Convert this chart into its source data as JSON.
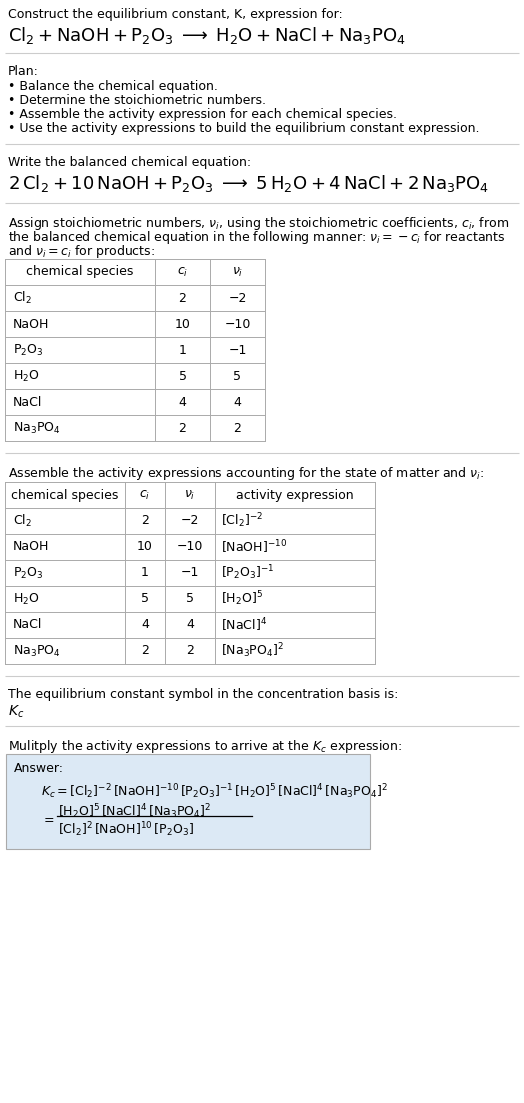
{
  "bg_color": "#ffffff",
  "text_color": "#000000",
  "table_border_color": "#aaaaaa",
  "answer_box_color": "#dce9f5",
  "separator_color": "#cccccc",
  "title_line1": "Construct the equilibrium constant, K, expression for:",
  "title_eq": "$\\mathrm{Cl_2 + NaOH + P_2O_3 \\;\\longrightarrow\\; H_2O + NaCl + Na_3PO_4}$",
  "plan_header": "Plan:",
  "plan_items": [
    "• Balance the chemical equation.",
    "• Determine the stoichiometric numbers.",
    "• Assemble the activity expression for each chemical species.",
    "• Use the activity expressions to build the equilibrium constant expression."
  ],
  "balanced_header": "Write the balanced chemical equation:",
  "balanced_eq": "$\\mathrm{2\\,Cl_2 + 10\\,NaOH + P_2O_3 \\;\\longrightarrow\\; 5\\,H_2O + 4\\,NaCl + 2\\,Na_3PO_4}$",
  "stoich_text1": "Assign stoichiometric numbers, $\\nu_i$, using the stoichiometric coefficients, $c_i$, from",
  "stoich_text2": "the balanced chemical equation in the following manner: $\\nu_i = -c_i$ for reactants",
  "stoich_text3": "and $\\nu_i = c_i$ for products:",
  "table1_headers": [
    "chemical species",
    "$c_i$",
    "$\\nu_i$"
  ],
  "table1_rows": [
    [
      "$\\mathrm{Cl_2}$",
      "2",
      "−2"
    ],
    [
      "NaOH",
      "10",
      "−10"
    ],
    [
      "$\\mathrm{P_2O_3}$",
      "1",
      "−1"
    ],
    [
      "$\\mathrm{H_2O}$",
      "5",
      "5"
    ],
    [
      "NaCl",
      "4",
      "4"
    ],
    [
      "$\\mathrm{Na_3PO_4}$",
      "2",
      "2"
    ]
  ],
  "activity_header": "Assemble the activity expressions accounting for the state of matter and $\\nu_i$:",
  "table2_headers": [
    "chemical species",
    "$c_i$",
    "$\\nu_i$",
    "activity expression"
  ],
  "table2_rows": [
    [
      "$\\mathrm{Cl_2}$",
      "2",
      "−2",
      "$[\\mathrm{Cl_2}]^{-2}$"
    ],
    [
      "NaOH",
      "10",
      "−10",
      "$[\\mathrm{NaOH}]^{-10}$"
    ],
    [
      "$\\mathrm{P_2O_3}$",
      "1",
      "−1",
      "$[\\mathrm{P_2O_3}]^{-1}$"
    ],
    [
      "$\\mathrm{H_2O}$",
      "5",
      "5",
      "$[\\mathrm{H_2O}]^5$"
    ],
    [
      "NaCl",
      "4",
      "4",
      "$[\\mathrm{NaCl}]^4$"
    ],
    [
      "$\\mathrm{Na_3PO_4}$",
      "2",
      "2",
      "$[\\mathrm{Na_3PO_4}]^2$"
    ]
  ],
  "kc_header": "The equilibrium constant symbol in the concentration basis is:",
  "kc_symbol": "$K_c$",
  "multiply_header": "Mulitply the activity expressions to arrive at the $K_c$ expression:",
  "answer_label": "Answer:",
  "answer_line1": "$K_c = [\\mathrm{Cl_2}]^{-2}\\,[\\mathrm{NaOH}]^{-10}\\,[\\mathrm{P_2O_3}]^{-1}\\,[\\mathrm{H_2O}]^5\\,[\\mathrm{NaCl}]^4\\,[\\mathrm{Na_3PO_4}]^2$",
  "answer_line2a": "$[\\mathrm{H_2O}]^5\\,[\\mathrm{NaCl}]^4\\,[\\mathrm{Na_3PO_4}]^2$",
  "answer_line2b": "$[\\mathrm{Cl_2}]^2\\,[\\mathrm{NaOH}]^{10}\\,[\\mathrm{P_2O_3}]$"
}
